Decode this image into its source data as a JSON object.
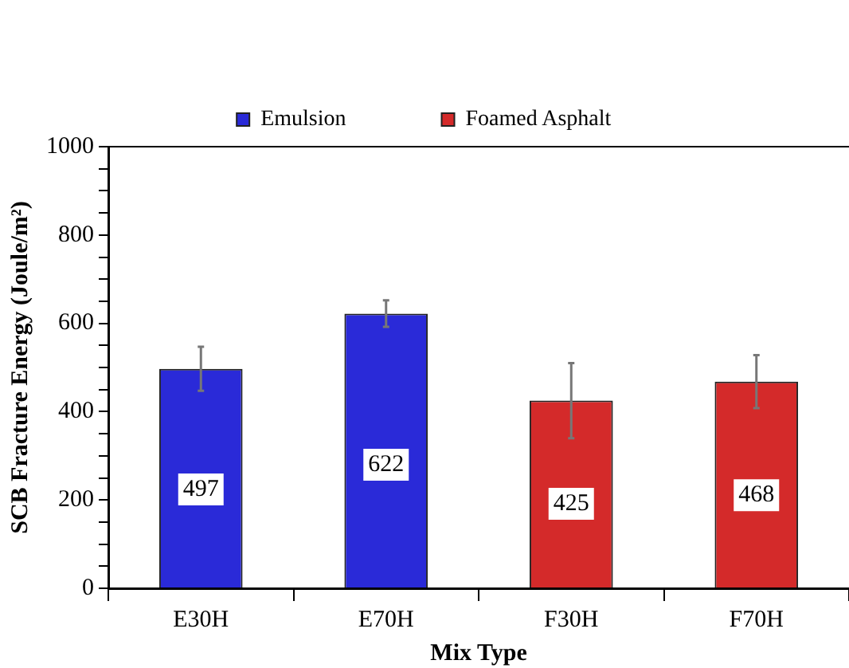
{
  "chart_data": {
    "type": "bar",
    "xlabel": "Mix Type",
    "ylabel": "SCB Fracture Energy (Joule/m²)",
    "categories": [
      "E30H",
      "E70H",
      "F30H",
      "F70H"
    ],
    "series": [
      {
        "name": "Emulsion",
        "color": "#2a2ad8",
        "values": [
          497,
          622,
          null,
          null
        ],
        "errors": [
          50,
          30,
          null,
          null
        ]
      },
      {
        "name": "Foamed Asphalt",
        "color": "#d42a2a",
        "values": [
          null,
          null,
          425,
          468
        ],
        "errors": [
          null,
          null,
          85,
          60
        ]
      }
    ],
    "ylim": [
      0,
      1000
    ],
    "yticks": [
      0,
      {
        "value": 50,
        "label": null
      },
      200,
      {
        "value": 100,
        "label": null
      },
      {
        "value": 150,
        "label": null
      },
      {
        "value": 250,
        "label": null
      },
      {
        "value": 300,
        "label": null
      },
      {
        "value": 350,
        "label": null
      },
      400,
      {
        "value": 450,
        "label": null
      },
      {
        "value": 500,
        "label": null
      },
      {
        "value": 550,
        "label": null
      },
      600,
      {
        "value": 650,
        "label": null
      },
      {
        "value": 700,
        "label": null
      },
      {
        "value": 750,
        "label": null
      },
      800,
      {
        "value": 850,
        "label": null
      },
      {
        "value": 900,
        "label": null
      },
      {
        "value": 950,
        "label": null
      },
      1000
    ],
    "grid": false,
    "legend": "top",
    "data_labels": true
  }
}
